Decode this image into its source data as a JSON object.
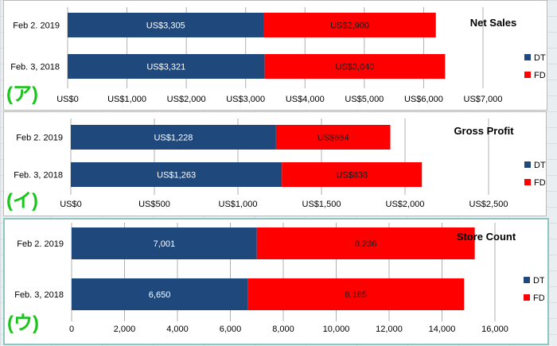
{
  "colors": {
    "DT": "#1f497d",
    "FD": "#ff0000",
    "marker": "#19c51c"
  },
  "chart_data": [
    {
      "type": "bar",
      "orientation": "horizontal",
      "stacked": true,
      "title": "Net Sales",
      "marker": "(ア)",
      "categories": [
        "Feb 2. 2019",
        "Feb. 3, 2018"
      ],
      "series": [
        {
          "name": "DT",
          "values": [
            3305,
            3321
          ],
          "labels": [
            "US$3,305",
            "US$3,321"
          ]
        },
        {
          "name": "FD",
          "values": [
            2900,
            3040
          ],
          "labels": [
            "US$2,900",
            "US$3,040"
          ]
        }
      ],
      "xlim": [
        0,
        7000
      ],
      "ticks": [
        0,
        1000,
        2000,
        3000,
        4000,
        5000,
        6000,
        7000
      ],
      "tick_labels": [
        "US$0",
        "US$1,000",
        "US$2,000",
        "US$3,000",
        "US$4,000",
        "US$5,000",
        "US$6,000",
        "US$7,000"
      ],
      "legend": [
        "DT",
        "FD"
      ],
      "legend_position": "right",
      "grid": true
    },
    {
      "type": "bar",
      "orientation": "horizontal",
      "stacked": true,
      "title": "Gross Profit",
      "marker": "(イ)",
      "categories": [
        "Feb 2. 2019",
        "Feb. 3, 2018"
      ],
      "series": [
        {
          "name": "DT",
          "values": [
            1228,
            1263
          ],
          "labels": [
            "US$1,228",
            "US$1,263"
          ]
        },
        {
          "name": "FD",
          "values": [
            684,
            838
          ],
          "labels": [
            "US$684",
            "US$838"
          ]
        }
      ],
      "xlim": [
        0,
        2500
      ],
      "ticks": [
        0,
        500,
        1000,
        1500,
        2000,
        2500
      ],
      "tick_labels": [
        "US$0",
        "US$500",
        "US$1,000",
        "US$1,500",
        "US$2,000",
        "US$2,500"
      ],
      "legend": [
        "DT",
        "FD"
      ],
      "legend_position": "right",
      "grid": true
    },
    {
      "type": "bar",
      "orientation": "horizontal",
      "stacked": true,
      "title": "Store Count",
      "marker": "(ウ)",
      "categories": [
        "Feb 2. 2019",
        "Feb. 3, 2018"
      ],
      "series": [
        {
          "name": "DT",
          "values": [
            7001,
            6650
          ],
          "labels": [
            "7,001",
            "6,650"
          ]
        },
        {
          "name": "FD",
          "values": [
            8236,
            8185
          ],
          "labels": [
            "8,236",
            "8,185"
          ]
        }
      ],
      "xlim": [
        0,
        16000
      ],
      "ticks": [
        0,
        2000,
        4000,
        6000,
        8000,
        10000,
        12000,
        14000,
        16000
      ],
      "tick_labels": [
        "0",
        "2,000",
        "4,000",
        "6,000",
        "8,000",
        "10,000",
        "12,000",
        "14,000",
        "16,000"
      ],
      "legend": [
        "DT",
        "FD"
      ],
      "legend_position": "right",
      "grid": true
    }
  ]
}
